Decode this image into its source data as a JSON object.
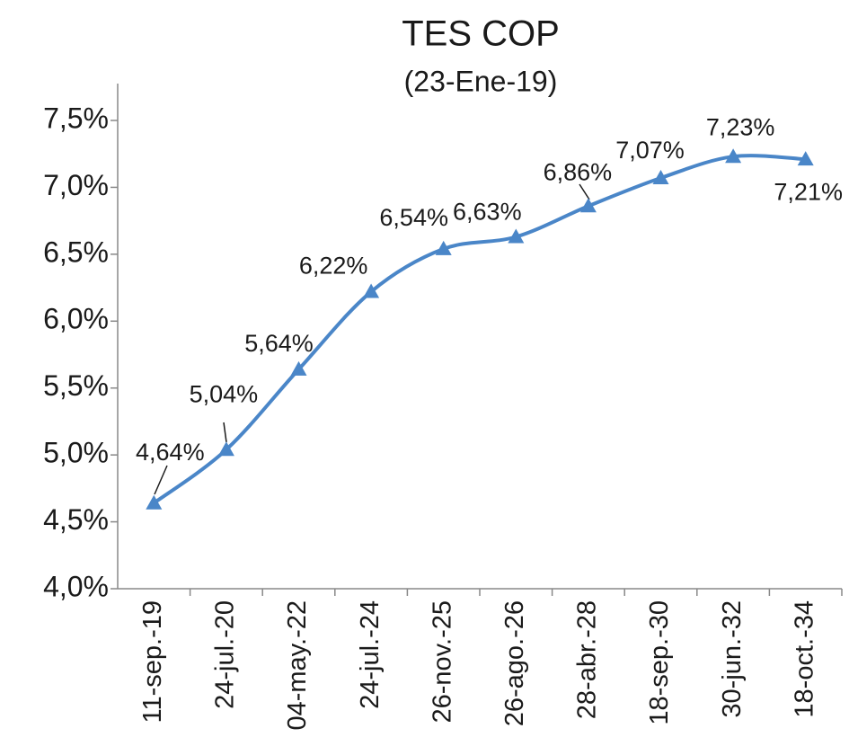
{
  "chart_data": {
    "type": "line",
    "title": "TES COP",
    "subtitle": "(23-Ene-19)",
    "categories": [
      "11-sep.-19",
      "24-jul.-20",
      "04-may.-22",
      "24-jul.-24",
      "26-nov.-25",
      "26-ago.-26",
      "28-abr.-28",
      "18-sep.-30",
      "30-jun.-32",
      "18-oct.-34"
    ],
    "series": [
      {
        "name": "TES COP",
        "color": "#4a86c8",
        "values": [
          4.64,
          5.04,
          5.64,
          6.22,
          6.54,
          6.63,
          6.86,
          7.07,
          7.23,
          7.21
        ],
        "value_labels": [
          "4,64%",
          "5,04%",
          "5,64%",
          "6,22%",
          "6,54%",
          "6,63%",
          "6,86%",
          "7,07%",
          "7,23%",
          "7,21%"
        ]
      }
    ],
    "ylim": [
      4.0,
      7.5
    ],
    "yticks": [
      {
        "value": 4.0,
        "label": "4,0%"
      },
      {
        "value": 4.5,
        "label": "4,5%"
      },
      {
        "value": 5.0,
        "label": "5,0%"
      },
      {
        "value": 5.5,
        "label": "5,5%"
      },
      {
        "value": 6.0,
        "label": "6,0%"
      },
      {
        "value": 6.5,
        "label": "6,5%"
      },
      {
        "value": 7.0,
        "label": "7,0%"
      },
      {
        "value": 7.5,
        "label": "7,5%"
      }
    ],
    "grid": false
  }
}
